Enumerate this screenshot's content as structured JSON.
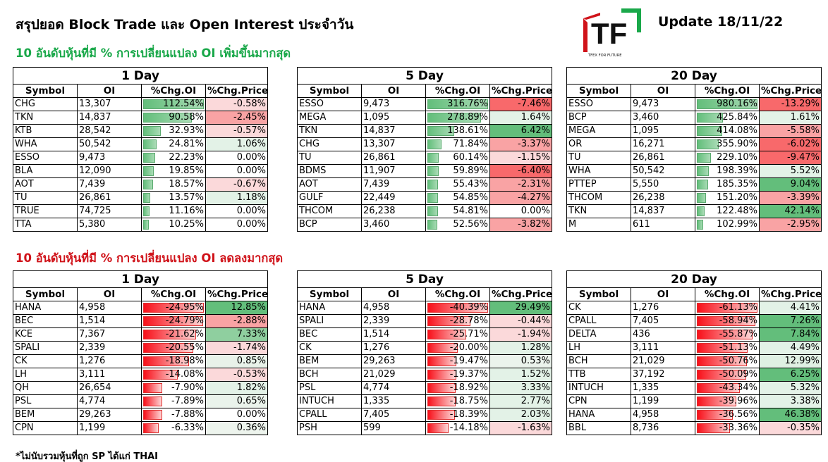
{
  "header": {
    "title": "สรุปยอด Block Trade และ Open Interest ประจำวัน",
    "update": "Update 18/11/22",
    "logo_letters": "TF",
    "logo_tagline": "TFEX FOR FUTURE"
  },
  "sections": {
    "increase_heading": "10 อันดับหุ้นที่มี % การเปลี่ยนแปลง OI เพิ่มขึ้นมากสุด",
    "decrease_heading": "10 อันดับหุ้นที่มี % การเปลี่ยนแปลง OI ลดลงมากสุด"
  },
  "footnote": "*ไม่นับรวมหุ้นที่ถูก SP ได้แก่ THAI",
  "columns": [
    "Symbol",
    "OI",
    "%Chg.OI",
    "%Chg.Price"
  ],
  "colors": {
    "green_strong": "#63be7b",
    "red_strong": "#f8696b",
    "neutral": "#fcfcff"
  },
  "tables": [
    {
      "period": "1 Day",
      "direction": "up",
      "rows": [
        {
          "symbol": "CHG",
          "oi": "13,307",
          "chg_oi": "112.54%",
          "chg_price": "-0.58%",
          "oi_val": 112.54,
          "price_val": -0.58
        },
        {
          "symbol": "TKN",
          "oi": "14,837",
          "chg_oi": "90.58%",
          "chg_price": "-2.45%",
          "oi_val": 90.58,
          "price_val": -2.45
        },
        {
          "symbol": "KTB",
          "oi": "28,542",
          "chg_oi": "32.93%",
          "chg_price": "-0.57%",
          "oi_val": 32.93,
          "price_val": -0.57
        },
        {
          "symbol": "WHA",
          "oi": "50,542",
          "chg_oi": "24.81%",
          "chg_price": "1.06%",
          "oi_val": 24.81,
          "price_val": 1.06
        },
        {
          "symbol": "ESSO",
          "oi": "9,473",
          "chg_oi": "22.23%",
          "chg_price": "0.00%",
          "oi_val": 22.23,
          "price_val": 0.0
        },
        {
          "symbol": "BLA",
          "oi": "12,090",
          "chg_oi": "19.85%",
          "chg_price": "0.00%",
          "oi_val": 19.85,
          "price_val": 0.0
        },
        {
          "symbol": "AOT",
          "oi": "7,439",
          "chg_oi": "18.57%",
          "chg_price": "-0.67%",
          "oi_val": 18.57,
          "price_val": -0.67
        },
        {
          "symbol": "TU",
          "oi": "26,861",
          "chg_oi": "13.57%",
          "chg_price": "1.18%",
          "oi_val": 13.57,
          "price_val": 1.18
        },
        {
          "symbol": "TRUE",
          "oi": "74,725",
          "chg_oi": "11.16%",
          "chg_price": "0.00%",
          "oi_val": 11.16,
          "price_val": 0.0
        },
        {
          "symbol": "TTA",
          "oi": "5,380",
          "chg_oi": "10.25%",
          "chg_price": "0.00%",
          "oi_val": 10.25,
          "price_val": 0.0
        }
      ]
    },
    {
      "period": "5 Day",
      "direction": "up",
      "rows": [
        {
          "symbol": "ESSO",
          "oi": "9,473",
          "chg_oi": "316.76%",
          "chg_price": "-7.46%",
          "oi_val": 316.76,
          "price_val": -7.46
        },
        {
          "symbol": "MEGA",
          "oi": "1,095",
          "chg_oi": "278.89%",
          "chg_price": "1.64%",
          "oi_val": 278.89,
          "price_val": 1.64
        },
        {
          "symbol": "TKN",
          "oi": "14,837",
          "chg_oi": "138.61%",
          "chg_price": "6.42%",
          "oi_val": 138.61,
          "price_val": 6.42
        },
        {
          "symbol": "CHG",
          "oi": "13,307",
          "chg_oi": "71.84%",
          "chg_price": "-3.37%",
          "oi_val": 71.84,
          "price_val": -3.37
        },
        {
          "symbol": "TU",
          "oi": "26,861",
          "chg_oi": "60.14%",
          "chg_price": "-1.15%",
          "oi_val": 60.14,
          "price_val": -1.15
        },
        {
          "symbol": "BDMS",
          "oi": "11,907",
          "chg_oi": "59.89%",
          "chg_price": "-6.40%",
          "oi_val": 59.89,
          "price_val": -6.4
        },
        {
          "symbol": "AOT",
          "oi": "7,439",
          "chg_oi": "55.43%",
          "chg_price": "-2.31%",
          "oi_val": 55.43,
          "price_val": -2.31
        },
        {
          "symbol": "GULF",
          "oi": "22,449",
          "chg_oi": "54.85%",
          "chg_price": "-4.27%",
          "oi_val": 54.85,
          "price_val": -4.27
        },
        {
          "symbol": "THCOM",
          "oi": "26,238",
          "chg_oi": "54.81%",
          "chg_price": "0.00%",
          "oi_val": 54.81,
          "price_val": 0.0
        },
        {
          "symbol": "BCP",
          "oi": "3,460",
          "chg_oi": "52.56%",
          "chg_price": "-3.82%",
          "oi_val": 52.56,
          "price_val": -3.82
        }
      ]
    },
    {
      "period": "20 Day",
      "direction": "up",
      "rows": [
        {
          "symbol": "ESSO",
          "oi": "9,473",
          "chg_oi": "980.16%",
          "chg_price": "-13.29%",
          "oi_val": 980.16,
          "price_val": -13.29
        },
        {
          "symbol": "BCP",
          "oi": "3,460",
          "chg_oi": "425.84%",
          "chg_price": "1.61%",
          "oi_val": 425.84,
          "price_val": 1.61
        },
        {
          "symbol": "MEGA",
          "oi": "1,095",
          "chg_oi": "414.08%",
          "chg_price": "-5.58%",
          "oi_val": 414.08,
          "price_val": -5.58
        },
        {
          "symbol": "OR",
          "oi": "16,271",
          "chg_oi": "355.90%",
          "chg_price": "-6.02%",
          "oi_val": 355.9,
          "price_val": -6.02
        },
        {
          "symbol": "TU",
          "oi": "26,861",
          "chg_oi": "229.10%",
          "chg_price": "-9.47%",
          "oi_val": 229.1,
          "price_val": -9.47
        },
        {
          "symbol": "WHA",
          "oi": "50,542",
          "chg_oi": "198.39%",
          "chg_price": "5.52%",
          "oi_val": 198.39,
          "price_val": 5.52
        },
        {
          "symbol": "PTTEP",
          "oi": "5,550",
          "chg_oi": "185.35%",
          "chg_price": "9.04%",
          "oi_val": 185.35,
          "price_val": 9.04
        },
        {
          "symbol": "THCOM",
          "oi": "26,238",
          "chg_oi": "151.20%",
          "chg_price": "-3.39%",
          "oi_val": 151.2,
          "price_val": -3.39
        },
        {
          "symbol": "TKN",
          "oi": "14,837",
          "chg_oi": "122.48%",
          "chg_price": "42.14%",
          "oi_val": 122.48,
          "price_val": 42.14
        },
        {
          "symbol": "M",
          "oi": "611",
          "chg_oi": "102.99%",
          "chg_price": "-2.95%",
          "oi_val": 102.99,
          "price_val": -2.95
        }
      ]
    },
    {
      "period": "1 Day",
      "direction": "down",
      "rows": [
        {
          "symbol": "HANA",
          "oi": "4,958",
          "chg_oi": "-24.95%",
          "chg_price": "12.85%",
          "oi_val": -24.95,
          "price_val": 12.85
        },
        {
          "symbol": "BEC",
          "oi": "1,514",
          "chg_oi": "-24.79%",
          "chg_price": "-2.88%",
          "oi_val": -24.79,
          "price_val": -2.88
        },
        {
          "symbol": "KCE",
          "oi": "7,367",
          "chg_oi": "-21.62%",
          "chg_price": "7.33%",
          "oi_val": -21.62,
          "price_val": 7.33
        },
        {
          "symbol": "SPALI",
          "oi": "2,339",
          "chg_oi": "-20.55%",
          "chg_price": "-1.74%",
          "oi_val": -20.55,
          "price_val": -1.74
        },
        {
          "symbol": "CK",
          "oi": "1,276",
          "chg_oi": "-18.98%",
          "chg_price": "0.85%",
          "oi_val": -18.98,
          "price_val": 0.85
        },
        {
          "symbol": "LH",
          "oi": "3,111",
          "chg_oi": "-14.08%",
          "chg_price": "-0.53%",
          "oi_val": -14.08,
          "price_val": -0.53
        },
        {
          "symbol": "QH",
          "oi": "26,654",
          "chg_oi": "-7.90%",
          "chg_price": "1.82%",
          "oi_val": -7.9,
          "price_val": 1.82
        },
        {
          "symbol": "PSL",
          "oi": "4,774",
          "chg_oi": "-7.89%",
          "chg_price": "0.65%",
          "oi_val": -7.89,
          "price_val": 0.65
        },
        {
          "symbol": "BEM",
          "oi": "29,263",
          "chg_oi": "-7.88%",
          "chg_price": "0.00%",
          "oi_val": -7.88,
          "price_val": 0.0
        },
        {
          "symbol": "CPN",
          "oi": "1,199",
          "chg_oi": "-6.33%",
          "chg_price": "0.36%",
          "oi_val": -6.33,
          "price_val": 0.36
        }
      ]
    },
    {
      "period": "5 Day",
      "direction": "down",
      "rows": [
        {
          "symbol": "HANA",
          "oi": "4,958",
          "chg_oi": "-40.39%",
          "chg_price": "29.49%",
          "oi_val": -40.39,
          "price_val": 29.49
        },
        {
          "symbol": "SPALI",
          "oi": "2,339",
          "chg_oi": "-28.78%",
          "chg_price": "-0.44%",
          "oi_val": -28.78,
          "price_val": -0.44
        },
        {
          "symbol": "BEC",
          "oi": "1,514",
          "chg_oi": "-25.71%",
          "chg_price": "-1.94%",
          "oi_val": -25.71,
          "price_val": -1.94
        },
        {
          "symbol": "CK",
          "oi": "1,276",
          "chg_oi": "-20.00%",
          "chg_price": "1.28%",
          "oi_val": -20.0,
          "price_val": 1.28
        },
        {
          "symbol": "BEM",
          "oi": "29,263",
          "chg_oi": "-19.47%",
          "chg_price": "0.53%",
          "oi_val": -19.47,
          "price_val": 0.53
        },
        {
          "symbol": "BCH",
          "oi": "21,029",
          "chg_oi": "-19.37%",
          "chg_price": "1.52%",
          "oi_val": -19.37,
          "price_val": 1.52
        },
        {
          "symbol": "PSL",
          "oi": "4,774",
          "chg_oi": "-18.92%",
          "chg_price": "3.33%",
          "oi_val": -18.92,
          "price_val": 3.33
        },
        {
          "symbol": "INTUCH",
          "oi": "1,335",
          "chg_oi": "-18.75%",
          "chg_price": "2.77%",
          "oi_val": -18.75,
          "price_val": 2.77
        },
        {
          "symbol": "CPALL",
          "oi": "7,405",
          "chg_oi": "-18.39%",
          "chg_price": "2.03%",
          "oi_val": -18.39,
          "price_val": 2.03
        },
        {
          "symbol": "PSH",
          "oi": "599",
          "chg_oi": "-14.18%",
          "chg_price": "-1.63%",
          "oi_val": -14.18,
          "price_val": -1.63
        }
      ]
    },
    {
      "period": "20 Day",
      "direction": "down",
      "rows": [
        {
          "symbol": "CK",
          "oi": "1,276",
          "chg_oi": "-61.13%",
          "chg_price": "4.41%",
          "oi_val": -61.13,
          "price_val": 4.41
        },
        {
          "symbol": "CPALL",
          "oi": "7,405",
          "chg_oi": "-58.94%",
          "chg_price": "7.26%",
          "oi_val": -58.94,
          "price_val": 7.26
        },
        {
          "symbol": "DELTA",
          "oi": "436",
          "chg_oi": "-55.87%",
          "chg_price": "7.84%",
          "oi_val": -55.87,
          "price_val": 7.84
        },
        {
          "symbol": "LH",
          "oi": "3,111",
          "chg_oi": "-51.13%",
          "chg_price": "4.49%",
          "oi_val": -51.13,
          "price_val": 4.49
        },
        {
          "symbol": "BCH",
          "oi": "21,029",
          "chg_oi": "-50.76%",
          "chg_price": "12.99%",
          "oi_val": -50.76,
          "price_val": 12.99
        },
        {
          "symbol": "TTB",
          "oi": "37,192",
          "chg_oi": "-50.09%",
          "chg_price": "6.25%",
          "oi_val": -50.09,
          "price_val": 6.25
        },
        {
          "symbol": "INTUCH",
          "oi": "1,335",
          "chg_oi": "-43.34%",
          "chg_price": "5.32%",
          "oi_val": -43.34,
          "price_val": 5.32
        },
        {
          "symbol": "CPN",
          "oi": "1,199",
          "chg_oi": "-39.96%",
          "chg_price": "3.38%",
          "oi_val": -39.96,
          "price_val": 3.38
        },
        {
          "symbol": "HANA",
          "oi": "4,958",
          "chg_oi": "-36.56%",
          "chg_price": "46.38%",
          "oi_val": -36.56,
          "price_val": 46.38
        },
        {
          "symbol": "BBL",
          "oi": "8,736",
          "chg_oi": "-33.36%",
          "chg_price": "-0.35%",
          "oi_val": -33.36,
          "price_val": -0.35
        }
      ]
    }
  ]
}
